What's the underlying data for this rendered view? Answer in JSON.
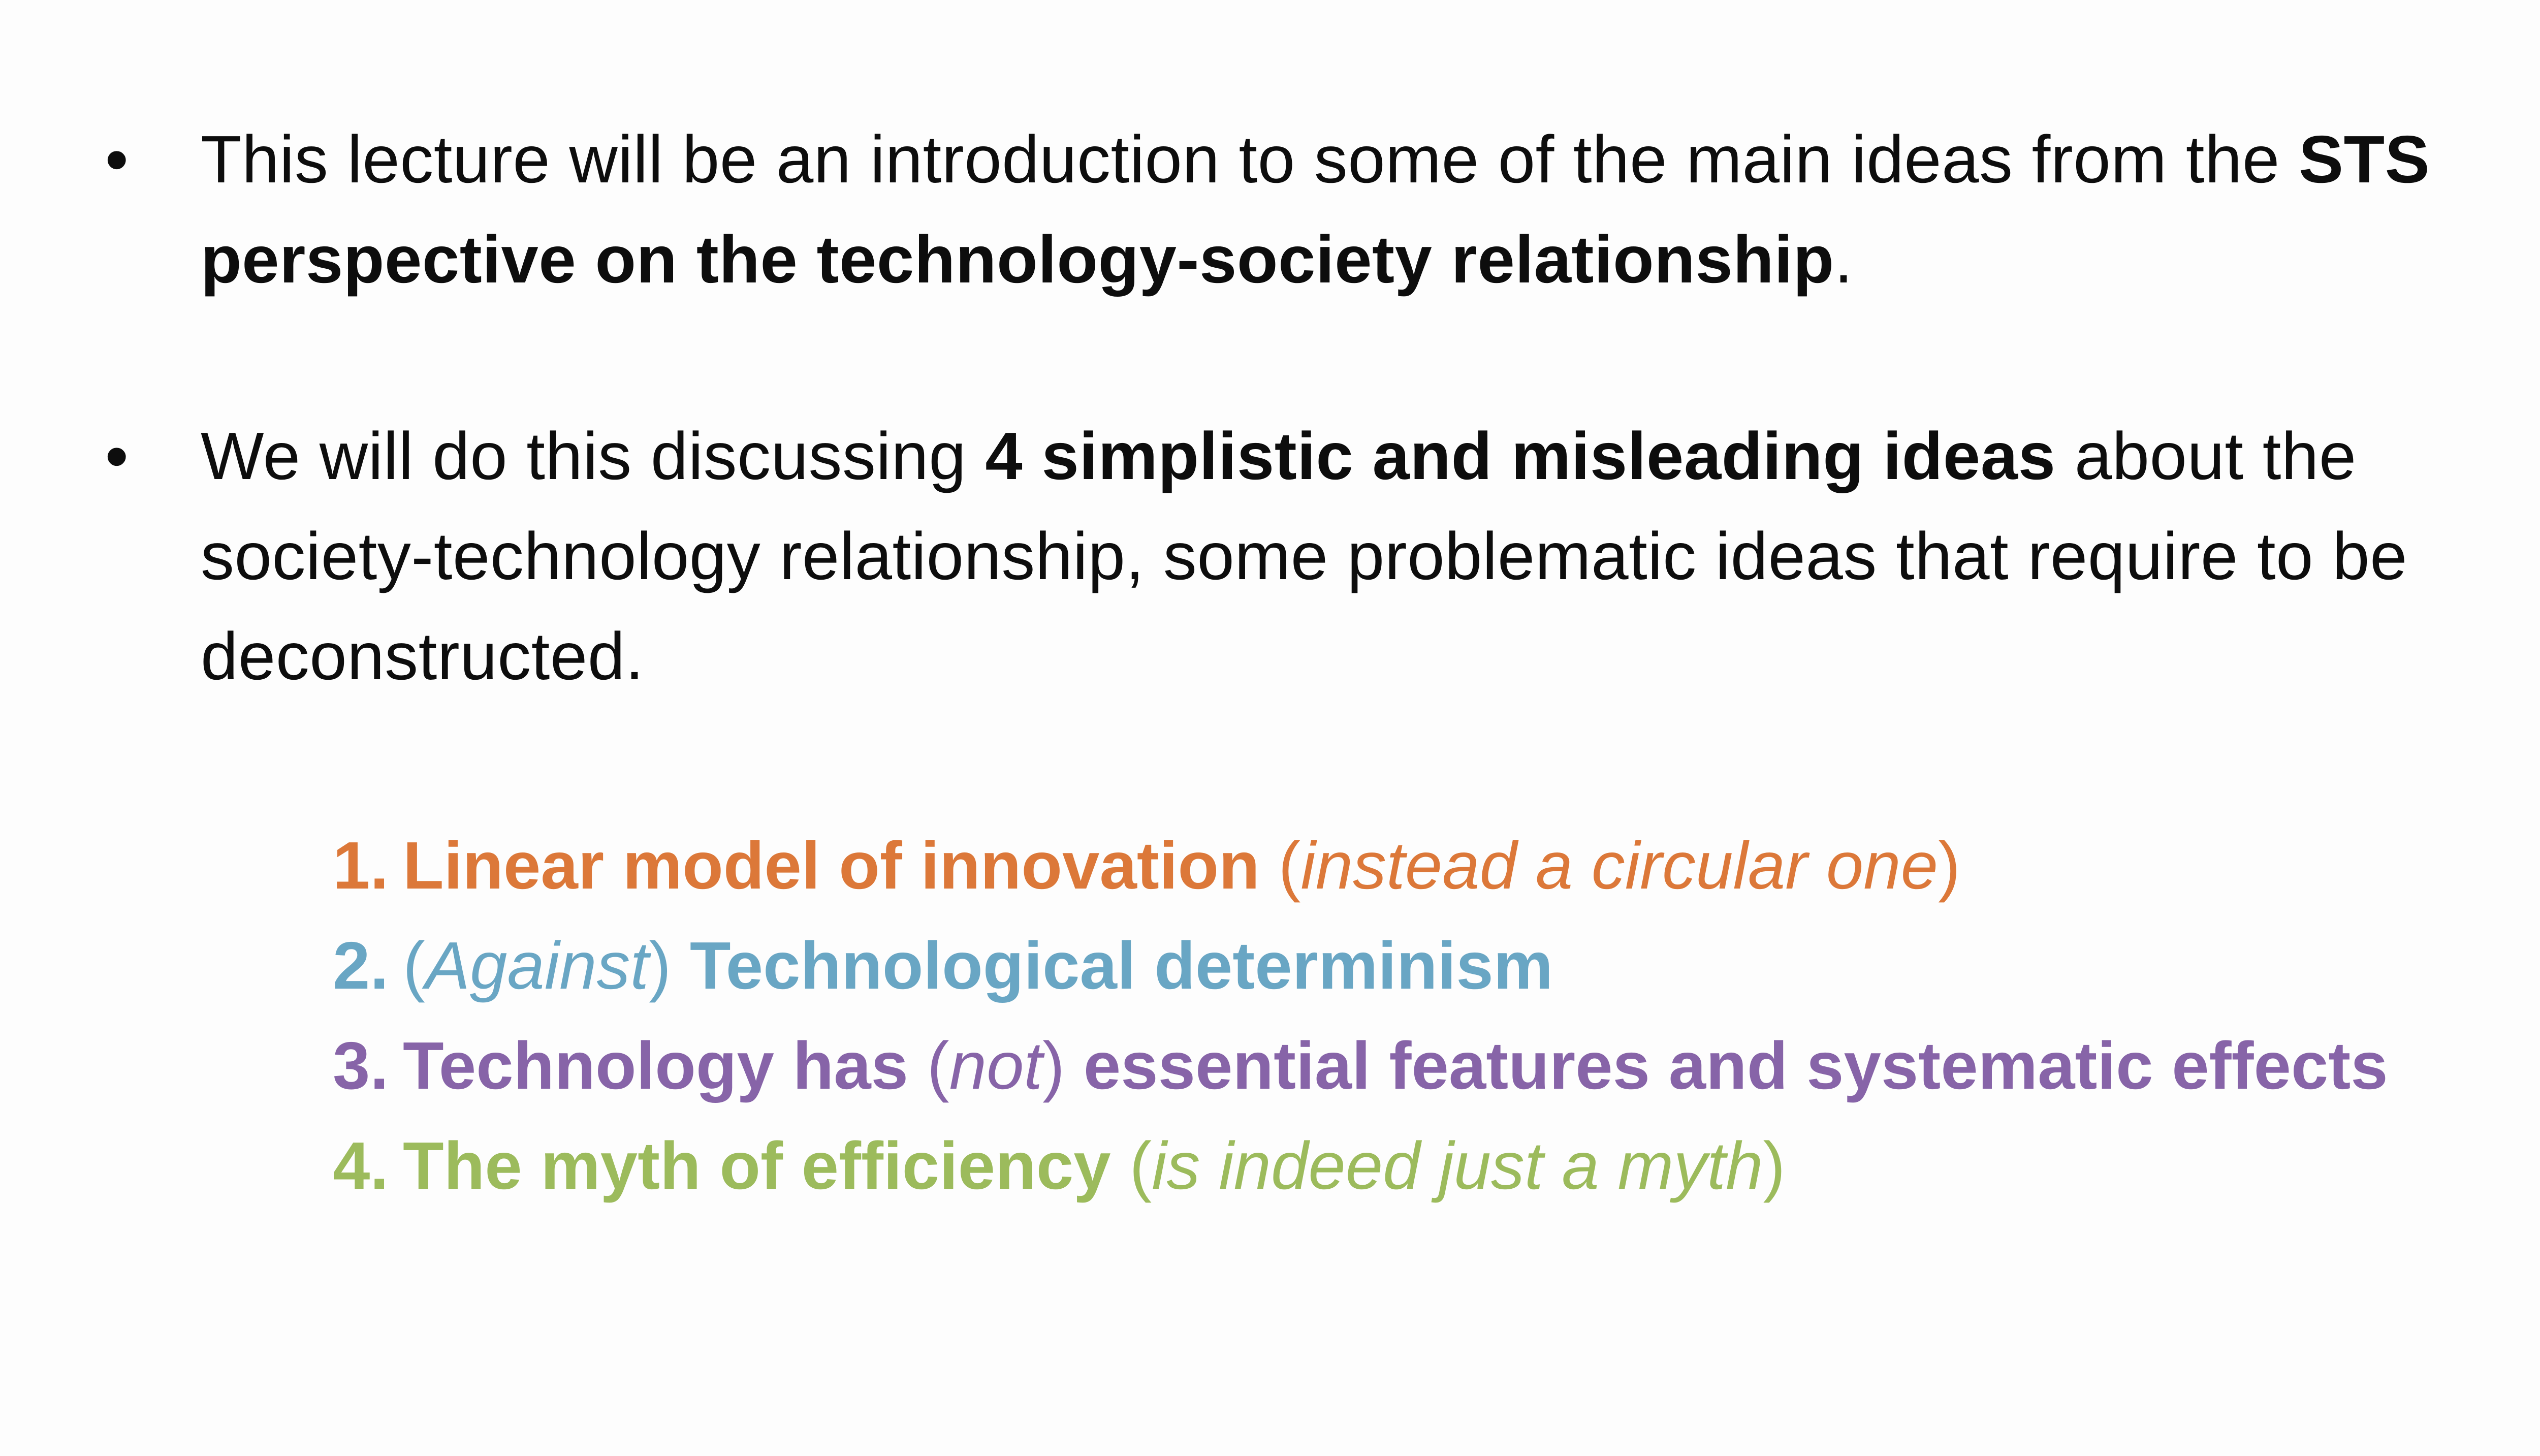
{
  "colors": {
    "text": "#0d0d0d",
    "item1": "#dc7839",
    "item2": "#69a6c4",
    "item3": "#8764a8",
    "item4": "#9cbb5c",
    "background": "#fdfdfd"
  },
  "bullets": [
    {
      "marker": "•",
      "before": "This lecture will be an introduction to some of the main ideas from the ",
      "bold": "STS perspective on the technology-society relationship",
      "after": "."
    },
    {
      "marker": "•",
      "before": "We will do this discussing ",
      "bold": "4 simplistic and misleading ideas",
      "after": " about the society-technology relationship, some problematic ideas that require to be deconstructed."
    }
  ],
  "items": [
    {
      "number": "1.",
      "bold": "Linear model of innovation",
      "open": " (",
      "italic": "instead a circular one",
      "close": ")"
    },
    {
      "number": "2.",
      "open": "(",
      "italic": "Against",
      "close": ") ",
      "bold": "Technological determinism"
    },
    {
      "number": "3.",
      "bold_a": "Technology has ",
      "open": "(",
      "italic": "not",
      "close": ") ",
      "bold_b": "essential features and systematic effects"
    },
    {
      "number": "4.",
      "bold": "The myth of efficiency",
      "open": " (",
      "italic": "is indeed just a myth",
      "close": ")"
    }
  ]
}
